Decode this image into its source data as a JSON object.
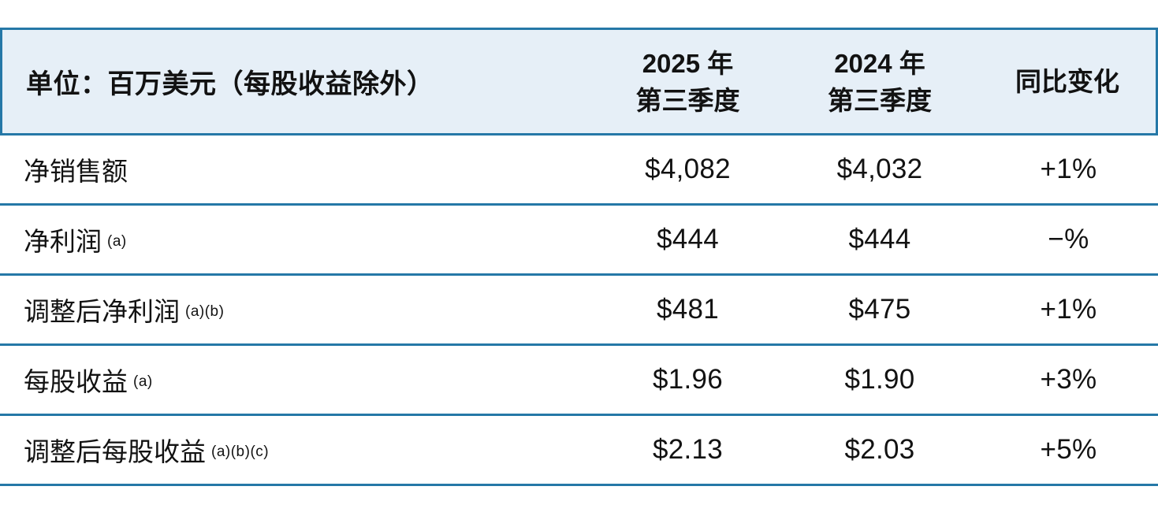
{
  "colors": {
    "border_blue": "#2578a7",
    "header_background": "#e6eff7",
    "text": "#121212",
    "page_background": "#ffffff"
  },
  "table": {
    "unit_header": "单位：百万美元（每股收益除外）",
    "columns": [
      {
        "line1": "2025 年",
        "line2": "第三季度"
      },
      {
        "line1": "2024 年",
        "line2": "第三季度"
      },
      {
        "label": "同比变化"
      }
    ],
    "rows": [
      {
        "label": "净销售额",
        "superscript": "",
        "q3_2025": "$4,082",
        "q3_2024": "$4,032",
        "yoy": "+1%"
      },
      {
        "label": "净利润",
        "superscript": "(a)",
        "q3_2025": "$444",
        "q3_2024": "$444",
        "yoy": "−%"
      },
      {
        "label": "调整后净利润",
        "superscript": "(a)(b)",
        "q3_2025": "$481",
        "q3_2024": "$475",
        "yoy": "+1%"
      },
      {
        "label": "每股收益",
        "superscript": "(a)",
        "q3_2025": "$1.96",
        "q3_2024": "$1.90",
        "yoy": "+3%"
      },
      {
        "label": "调整后每股收益",
        "superscript": "(a)(b)(c)",
        "q3_2025": "$2.13",
        "q3_2024": "$2.03",
        "yoy": "+5%"
      }
    ]
  },
  "chart_data": {
    "type": "table",
    "title": "",
    "unit_note": "单位：百万美元（每股收益除外）",
    "columns": [
      "单位：百万美元（每股收益除外）",
      "2025 年 第三季度",
      "2024 年 第三季度",
      "同比变化"
    ],
    "rows": [
      [
        "净销售额",
        "$4,082",
        "$4,032",
        "+1%"
      ],
      [
        "净利润 (a)",
        "$444",
        "$444",
        "−%"
      ],
      [
        "调整后净利润 (a)(b)",
        "$481",
        "$475",
        "+1%"
      ],
      [
        "每股收益 (a)",
        "$1.96",
        "$1.90",
        "+3%"
      ],
      [
        "调整后每股收益 (a)(b)(c)",
        "$2.13",
        "$2.03",
        "+5%"
      ]
    ]
  }
}
